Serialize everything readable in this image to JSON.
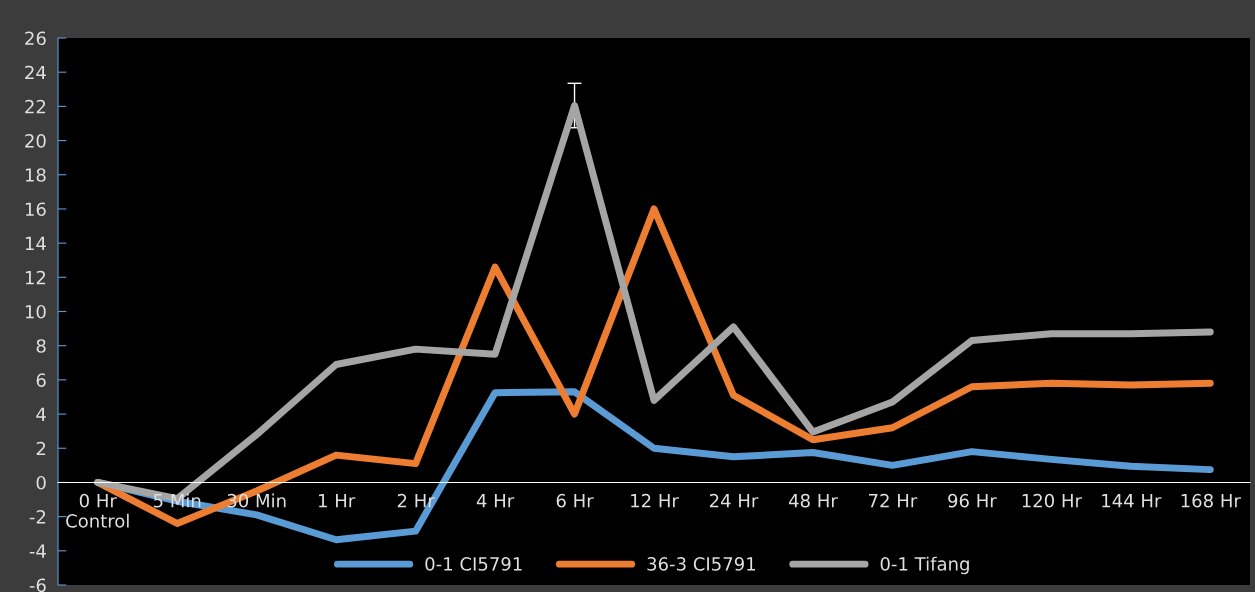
{
  "chart_data": {
    "type": "line",
    "categories": [
      "0 Hr\nControl",
      "5 Min",
      "30 Min",
      "1 Hr",
      "2 Hr",
      "4 Hr",
      "6 Hr",
      "12 Hr",
      "24 Hr",
      "48 Hr",
      "72 Hr",
      "96 Hr",
      "120 Hr",
      "144 Hr",
      "168 Hr"
    ],
    "series": [
      {
        "name": "0-1 CI5791",
        "color": "#5b9bd5",
        "values": [
          0,
          -1.1,
          -1.9,
          -3.35,
          -2.85,
          5.25,
          5.3,
          2.0,
          1.5,
          1.75,
          1.0,
          1.8,
          1.35,
          0.95,
          0.75
        ]
      },
      {
        "name": "36-3 CI5791",
        "color": "#ed7d31",
        "values": [
          0,
          -2.4,
          -0.5,
          1.6,
          1.1,
          12.6,
          4.0,
          16.0,
          5.1,
          2.5,
          3.2,
          5.6,
          5.8,
          5.7,
          5.8
        ]
      },
      {
        "name": "0-1 Tifang",
        "color": "#a5a5a5",
        "values": [
          0,
          -0.95,
          2.8,
          6.9,
          7.8,
          7.5,
          22.05,
          4.8,
          9.1,
          2.95,
          4.7,
          8.3,
          8.7,
          8.7,
          8.8
        ],
        "errors": [
          null,
          null,
          null,
          null,
          null,
          null,
          1.3,
          null,
          null,
          null,
          null,
          null,
          null,
          null,
          null
        ]
      }
    ],
    "ylim": [
      -6,
      26
    ],
    "yticks": [
      -6,
      -4,
      -2,
      0,
      2,
      4,
      6,
      8,
      10,
      12,
      14,
      16,
      18,
      20,
      22,
      24,
      26
    ],
    "grid": false,
    "legend": "bottom",
    "marker": "none",
    "line_style": "solid"
  }
}
